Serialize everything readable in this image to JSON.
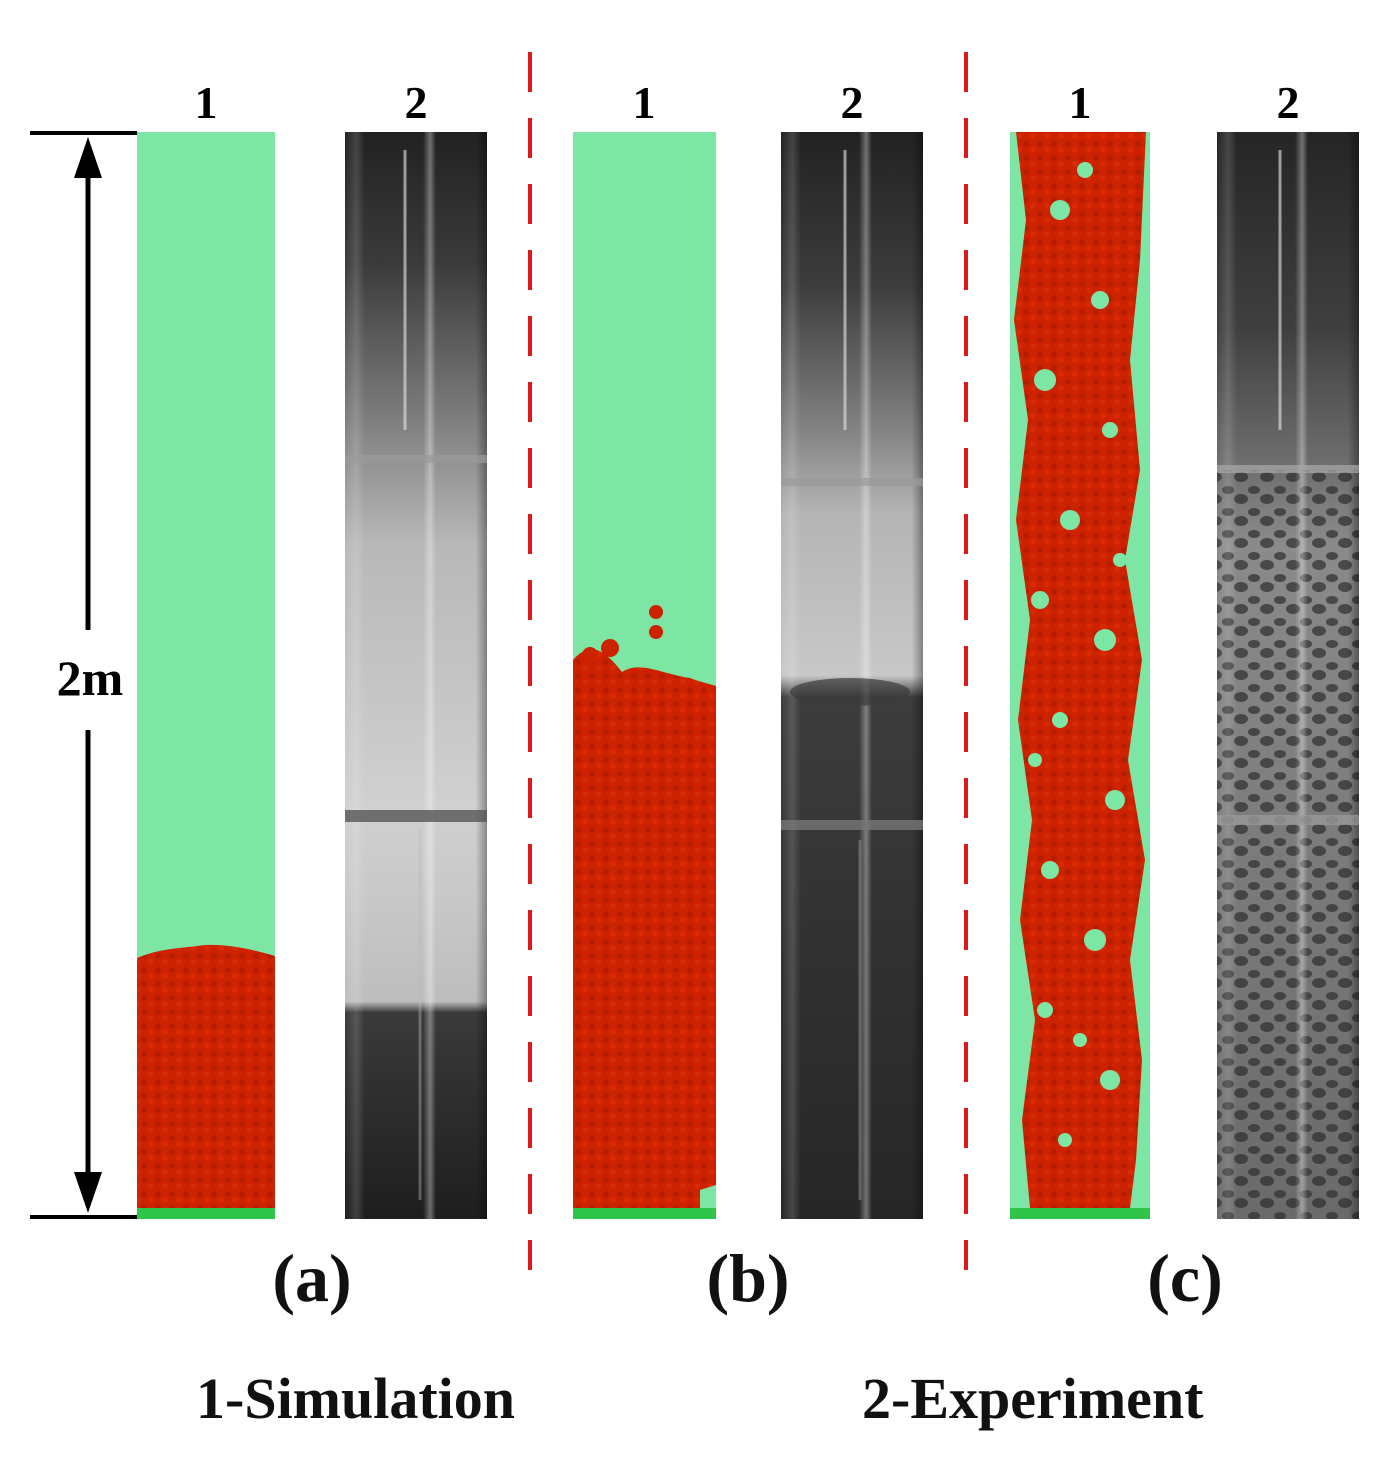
{
  "column_numbers": [
    "1",
    "2",
    "1",
    "2",
    "1",
    "2"
  ],
  "dimension_label": "2m",
  "panel_labels": [
    "(a)",
    "(b)",
    "(c)"
  ],
  "legend": {
    "simulation": "1-Simulation",
    "experiment": "2-Experiment"
  },
  "colors": {
    "fluid": "#7ee6a4",
    "particles": "#cc2200",
    "distributor": "#2fc44a",
    "divider": "#e01818",
    "tube_dark": "#2a2a2a",
    "tube_light": "#c8c8c8"
  },
  "panels": [
    {
      "label": "(a)",
      "state": "packed bed",
      "simulated_bed_fraction": 0.24
    },
    {
      "label": "(b)",
      "state": "expanded bed",
      "simulated_bed_fraction": 0.55
    },
    {
      "label": "(c)",
      "state": "fully fluidized",
      "simulated_bed_fraction": 1.0
    }
  ]
}
